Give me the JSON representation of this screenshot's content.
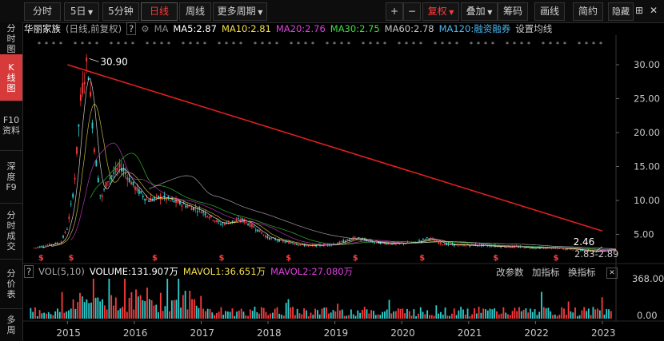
{
  "toolbar": {
    "items": [
      "分时",
      "5日",
      "5分钟",
      "日线",
      "周线",
      "更多周期",
      "复权",
      "叠加",
      "筹码",
      "画线",
      "简约",
      "隐藏"
    ],
    "plus": "+",
    "minus": "−"
  },
  "sidebar": {
    "items": [
      "分时图",
      "K线图",
      "F10资料",
      "深度F9",
      "分时成交",
      "分价表",
      "多周"
    ]
  },
  "ma": {
    "name": "华丽家族",
    "mode": "(日线,前复权)",
    "help": "?",
    "ma_label": "MA",
    "ma5": "MA5:2.87",
    "ma10": "MA10:2.81",
    "ma20": "MA20:2.76",
    "ma30": "MA30:2.75",
    "ma60": "MA60:2.78",
    "ma120": "MA120:融资融券",
    "settings": "设置均线",
    "colors": {
      "ma5": "#ffffff",
      "ma10": "#f5e04a",
      "ma20": "#e040e0",
      "ma30": "#3ce03c",
      "ma60": "#c8c8c8",
      "ma120": "#4ab8f0"
    }
  },
  "price": {
    "peak_label": "30.90",
    "low_label": "2.46",
    "range_label": "2.83-2.89",
    "y_ticks": [
      "30.00",
      "25.00",
      "20.00",
      "15.00",
      "10.00",
      "5.00"
    ],
    "marker": "$"
  },
  "volume": {
    "help": "?",
    "title": "VOL(5,10)",
    "volume": "VOLUME:131.907万",
    "mavol1": "MAVOL1:36.651万",
    "mavol2": "MAVOL2:27.080万",
    "y_top": "368.00",
    "y_bottom": "0.00",
    "tools": [
      "改参数",
      "加指标",
      "换指标"
    ]
  },
  "x_axis": [
    "2015",
    "2016",
    "2017",
    "2018",
    "2019",
    "2020",
    "2021",
    "2022",
    "2023"
  ],
  "chart_data": {
    "type": "line",
    "x": [
      2014.5,
      2014.9,
      2015.0,
      2015.1,
      2015.2,
      2015.3,
      2015.4,
      2015.5,
      2015.6,
      2015.8,
      2016.0,
      2016.2,
      2016.4,
      2016.7,
      2017.0,
      2017.3,
      2017.6,
      2017.8,
      2018.0,
      2018.3,
      2018.6,
      2018.9,
      2019.0,
      2019.3,
      2019.6,
      2019.9,
      2020.2,
      2020.4,
      2020.6,
      2020.9,
      2021.2,
      2021.6,
      2021.9,
      2022.2,
      2022.6,
      2022.9,
      2023.2
    ],
    "series": [
      {
        "values": [
          3.0,
          3.8,
          6.0,
          12.0,
          25.0,
          30.9,
          18.0,
          10.0,
          13.0,
          15.0,
          12.0,
          10.0,
          10.5,
          9.5,
          8.5,
          6.5,
          7.2,
          6.0,
          4.5,
          3.8,
          3.3,
          3.5,
          3.6,
          4.5,
          3.8,
          3.6,
          3.8,
          4.5,
          3.6,
          3.4,
          3.4,
          3.2,
          3.1,
          3.0,
          2.8,
          2.46,
          2.86
        ]
      }
    ],
    "trendline": {
      "from": [
        2015.0,
        30.0
      ],
      "to": [
        2023.0,
        5.5
      ]
    },
    "ylim": [
      2.0,
      32.0
    ]
  }
}
